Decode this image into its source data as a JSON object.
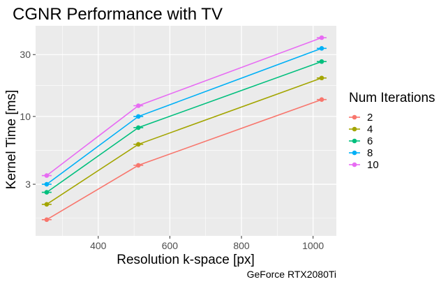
{
  "chart_data": {
    "type": "line",
    "title": "CGNR Performance with TV",
    "xlabel": "Resolution k-space [px]",
    "ylabel": "Kernel Time [ms]",
    "caption": "GeForce RTX2080Ti",
    "y_scale": "log",
    "xlim": [
      225,
      1065
    ],
    "ylim": [
      1.2,
      50
    ],
    "x_ticks": [
      400,
      600,
      800,
      1000
    ],
    "y_ticks": [
      3,
      10,
      30
    ],
    "x_tick_labels": [
      "400",
      "600",
      "800",
      "1000"
    ],
    "y_tick_labels": [
      "3",
      "10",
      "30"
    ],
    "grid": true,
    "legend": {
      "title": "Num Iterations",
      "placement": "right"
    },
    "x": [
      256,
      512,
      1024
    ],
    "series": [
      {
        "name": "2",
        "color": "#F8766D",
        "values": [
          1.6,
          4.2,
          13.5
        ]
      },
      {
        "name": "4",
        "color": "#A3A500",
        "values": [
          2.1,
          6.1,
          19.8
        ]
      },
      {
        "name": "6",
        "color": "#00BF7D",
        "values": [
          2.6,
          8.2,
          26.5
        ]
      },
      {
        "name": "8",
        "color": "#00B0F6",
        "values": [
          3.0,
          10.0,
          33.5
        ]
      },
      {
        "name": "10",
        "color": "#E76BF3",
        "values": [
          3.5,
          12.1,
          40.5
        ]
      }
    ]
  }
}
